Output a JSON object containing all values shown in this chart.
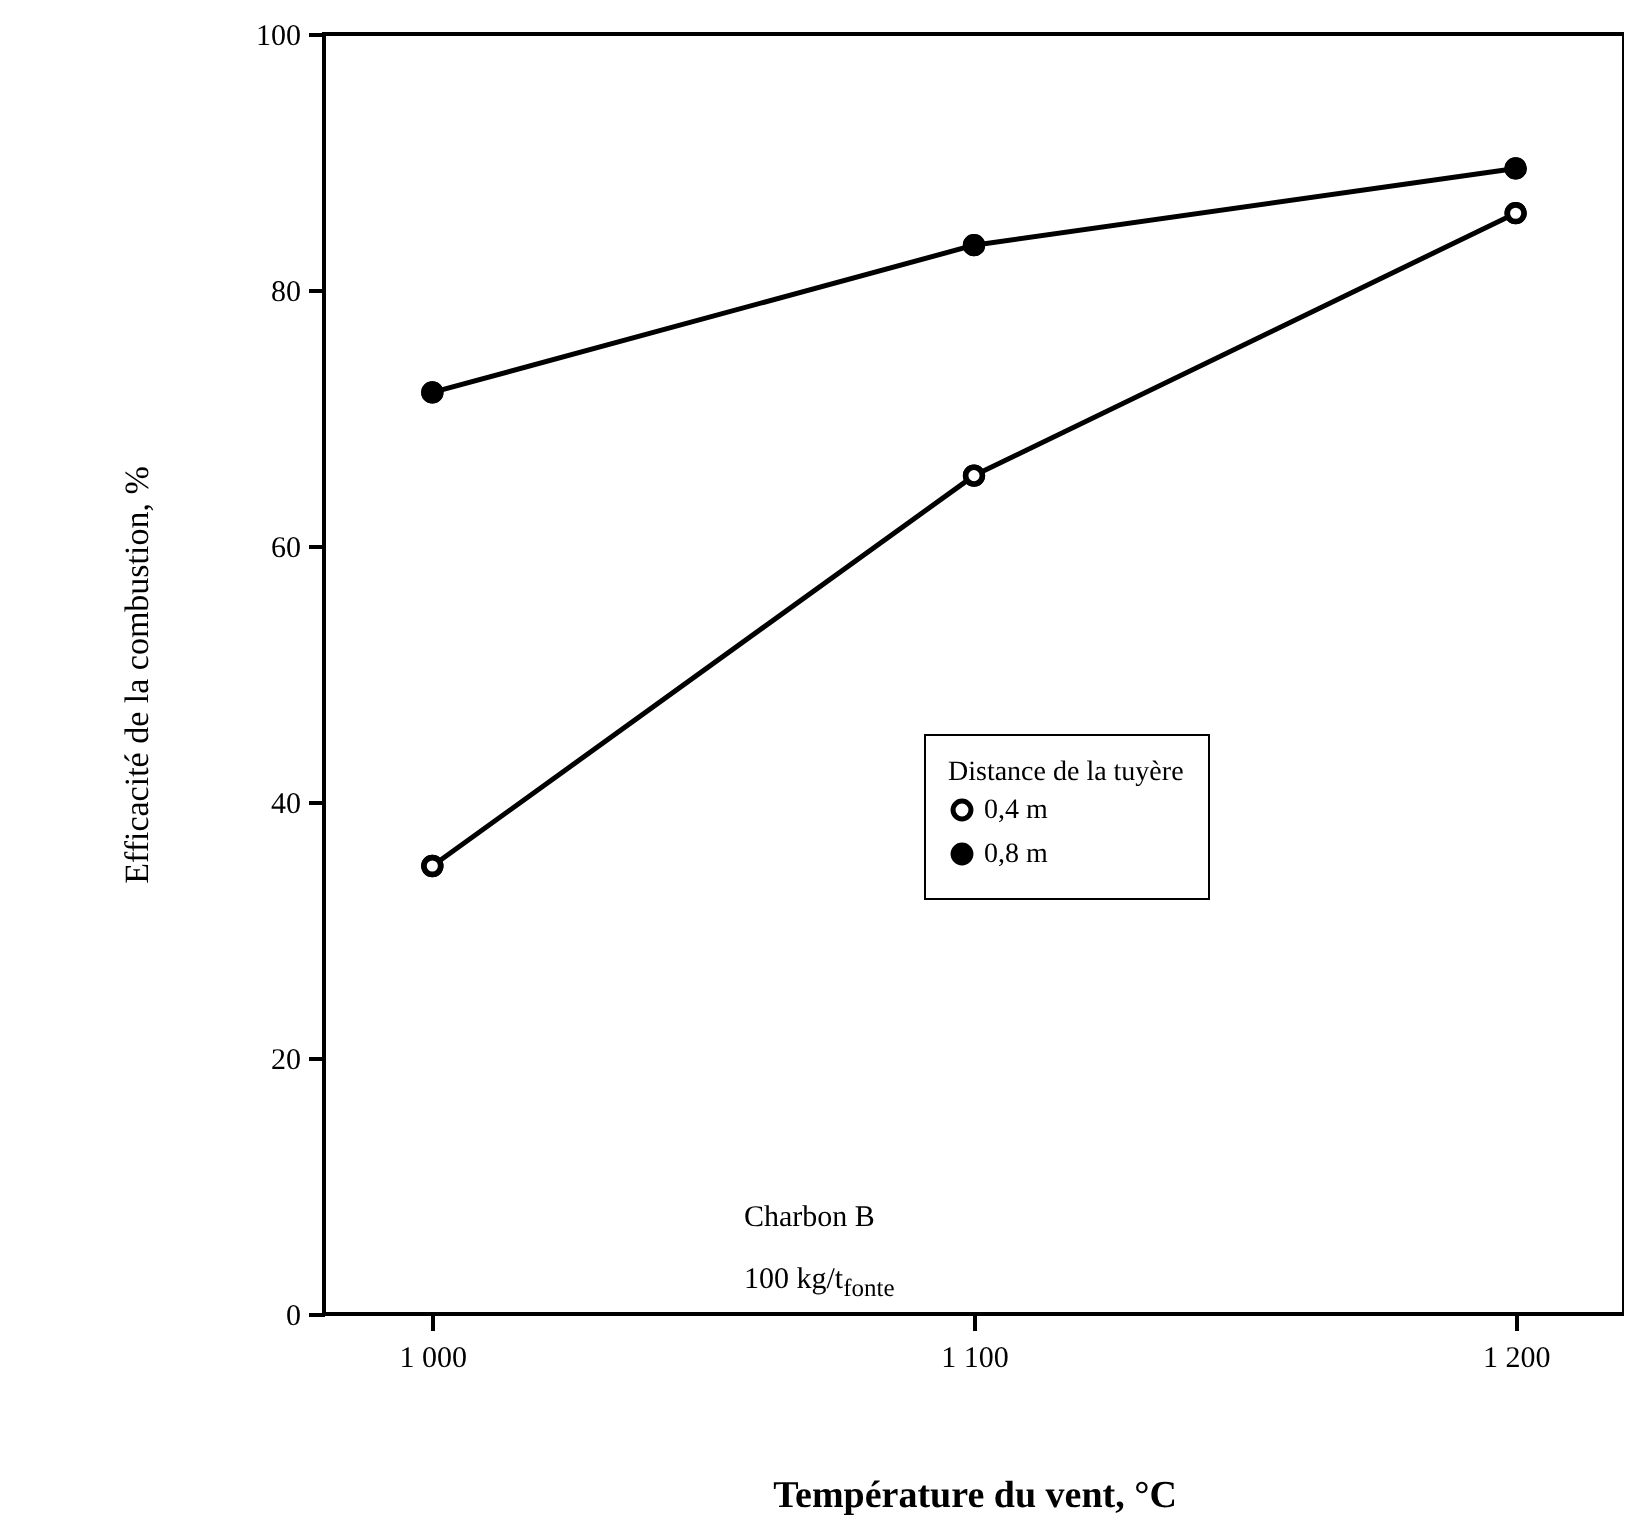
{
  "chart_data": {
    "type": "line",
    "xlabel": "Température du vent, °C",
    "ylabel": "Efficacité de la combustion, %",
    "legend_title": "Distance de la tuyère",
    "x": [
      1000,
      1100,
      1200
    ],
    "series": [
      {
        "name": "0,4 m",
        "color": "#000000",
        "colors": [
          "#ffffff",
          "#ffffff",
          "#ffffff"
        ],
        "values": [
          35,
          65.5,
          86
        ]
      },
      {
        "name": "0,8 m",
        "color": "#000000",
        "colors": [
          "#000000",
          "#000000",
          "#000000"
        ],
        "values": [
          72,
          83.5,
          89.5
        ]
      }
    ],
    "xlim": [
      980,
      1220
    ],
    "xticks": [
      {
        "value": 1000,
        "label": "1 000"
      },
      {
        "value": 1100,
        "label": "1 100"
      },
      {
        "value": 1200,
        "label": "1 200"
      }
    ],
    "ylim": [
      0,
      100
    ],
    "yticks": [
      0,
      20,
      40,
      60,
      80,
      100
    ],
    "marker": "circle",
    "line_style": "solid",
    "grid": false,
    "legend": "bottom right",
    "annotations": [
      "Charbon B",
      "100 kg/t$_{fonte}$"
    ]
  }
}
